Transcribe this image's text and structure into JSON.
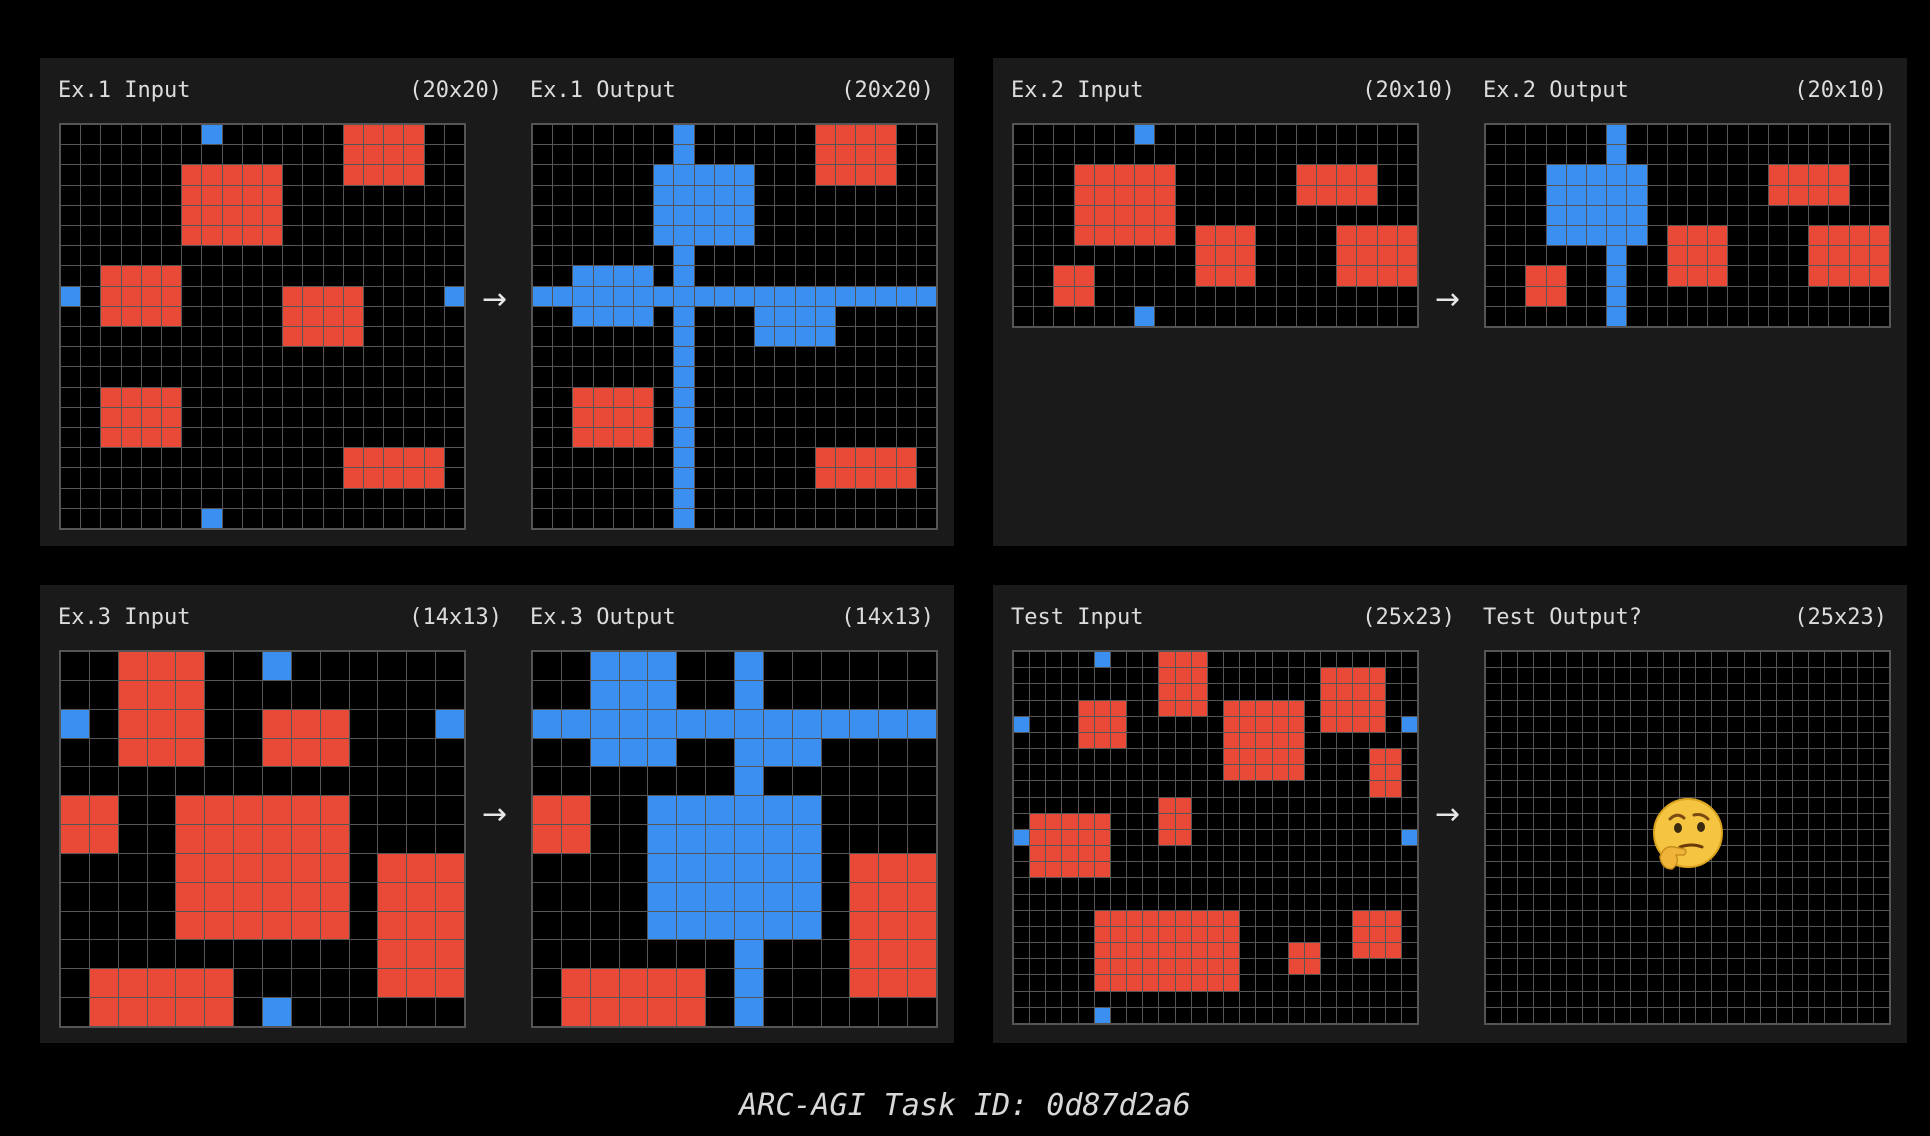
{
  "colors": {
    "0": "#000000",
    "1": "#3b8ff0",
    "2": "#e84a37"
  },
  "footer": "ARC-AGI Task ID: 0d87d2a6",
  "examples": [
    {
      "input": {
        "label": "Ex.1 Input",
        "dims": "(20x20)",
        "rows": 20,
        "cols": 20,
        "rects": [
          {
            "color": 2,
            "r": 0,
            "c": 14,
            "h": 3,
            "w": 4
          },
          {
            "color": 2,
            "r": 2,
            "c": 6,
            "h": 4,
            "w": 5
          },
          {
            "color": 2,
            "r": 7,
            "c": 2,
            "h": 3,
            "w": 4
          },
          {
            "color": 2,
            "r": 8,
            "c": 11,
            "h": 3,
            "w": 4
          },
          {
            "color": 2,
            "r": 13,
            "c": 2,
            "h": 3,
            "w": 4
          },
          {
            "color": 2,
            "r": 16,
            "c": 14,
            "h": 2,
            "w": 5
          },
          {
            "color": 1,
            "r": 0,
            "c": 7,
            "h": 1,
            "w": 1
          },
          {
            "color": 1,
            "r": 8,
            "c": 0,
            "h": 1,
            "w": 1
          },
          {
            "color": 1,
            "r": 8,
            "c": 19,
            "h": 1,
            "w": 1
          },
          {
            "color": 1,
            "r": 19,
            "c": 7,
            "h": 1,
            "w": 1
          }
        ]
      },
      "output": {
        "label": "Ex.1 Output",
        "dims": "(20x20)",
        "rows": 20,
        "cols": 20,
        "rects": [
          {
            "color": 2,
            "r": 0,
            "c": 14,
            "h": 3,
            "w": 4
          },
          {
            "color": 2,
            "r": 13,
            "c": 2,
            "h": 3,
            "w": 4
          },
          {
            "color": 2,
            "r": 16,
            "c": 14,
            "h": 2,
            "w": 5
          },
          {
            "color": 1,
            "r": 0,
            "c": 7,
            "h": 20,
            "w": 1
          },
          {
            "color": 1,
            "r": 8,
            "c": 0,
            "h": 1,
            "w": 20
          },
          {
            "color": 1,
            "r": 2,
            "c": 6,
            "h": 4,
            "w": 5
          },
          {
            "color": 1,
            "r": 7,
            "c": 2,
            "h": 3,
            "w": 4
          },
          {
            "color": 1,
            "r": 8,
            "c": 11,
            "h": 3,
            "w": 4
          }
        ]
      }
    },
    {
      "input": {
        "label": "Ex.2 Input",
        "dims": "(20x10)",
        "rows": 10,
        "cols": 20,
        "rects": [
          {
            "color": 2,
            "r": 2,
            "c": 3,
            "h": 4,
            "w": 5
          },
          {
            "color": 2,
            "r": 2,
            "c": 14,
            "h": 2,
            "w": 4
          },
          {
            "color": 2,
            "r": 5,
            "c": 9,
            "h": 3,
            "w": 3
          },
          {
            "color": 2,
            "r": 5,
            "c": 16,
            "h": 3,
            "w": 4
          },
          {
            "color": 2,
            "r": 7,
            "c": 2,
            "h": 2,
            "w": 2
          },
          {
            "color": 1,
            "r": 0,
            "c": 6,
            "h": 1,
            "w": 1
          },
          {
            "color": 1,
            "r": 9,
            "c": 6,
            "h": 1,
            "w": 1
          }
        ]
      },
      "output": {
        "label": "Ex.2 Output",
        "dims": "(20x10)",
        "rows": 10,
        "cols": 20,
        "rects": [
          {
            "color": 2,
            "r": 2,
            "c": 14,
            "h": 2,
            "w": 4
          },
          {
            "color": 2,
            "r": 5,
            "c": 9,
            "h": 3,
            "w": 3
          },
          {
            "color": 2,
            "r": 5,
            "c": 16,
            "h": 3,
            "w": 4
          },
          {
            "color": 2,
            "r": 7,
            "c": 2,
            "h": 2,
            "w": 2
          },
          {
            "color": 1,
            "r": 0,
            "c": 6,
            "h": 10,
            "w": 1
          },
          {
            "color": 1,
            "r": 2,
            "c": 3,
            "h": 4,
            "w": 5
          }
        ]
      }
    },
    {
      "input": {
        "label": "Ex.3 Input",
        "dims": "(14x13)",
        "rows": 13,
        "cols": 14,
        "rects": [
          {
            "color": 2,
            "r": 0,
            "c": 2,
            "h": 4,
            "w": 3
          },
          {
            "color": 2,
            "r": 2,
            "c": 7,
            "h": 2,
            "w": 3
          },
          {
            "color": 2,
            "r": 5,
            "c": 0,
            "h": 2,
            "w": 2
          },
          {
            "color": 2,
            "r": 5,
            "c": 4,
            "h": 5,
            "w": 6
          },
          {
            "color": 2,
            "r": 7,
            "c": 11,
            "h": 5,
            "w": 3
          },
          {
            "color": 2,
            "r": 11,
            "c": 1,
            "h": 2,
            "w": 5
          },
          {
            "color": 1,
            "r": 0,
            "c": 7,
            "h": 1,
            "w": 1
          },
          {
            "color": 1,
            "r": 2,
            "c": 0,
            "h": 1,
            "w": 1
          },
          {
            "color": 1,
            "r": 2,
            "c": 13,
            "h": 1,
            "w": 1
          },
          {
            "color": 1,
            "r": 12,
            "c": 7,
            "h": 1,
            "w": 1
          }
        ]
      },
      "output": {
        "label": "Ex.3 Output",
        "dims": "(14x13)",
        "rows": 13,
        "cols": 14,
        "rects": [
          {
            "color": 2,
            "r": 5,
            "c": 0,
            "h": 2,
            "w": 2
          },
          {
            "color": 2,
            "r": 7,
            "c": 11,
            "h": 5,
            "w": 3
          },
          {
            "color": 2,
            "r": 11,
            "c": 1,
            "h": 2,
            "w": 5
          },
          {
            "color": 1,
            "r": 0,
            "c": 7,
            "h": 13,
            "w": 1
          },
          {
            "color": 1,
            "r": 2,
            "c": 0,
            "h": 1,
            "w": 14
          },
          {
            "color": 1,
            "r": 0,
            "c": 2,
            "h": 4,
            "w": 3
          },
          {
            "color": 1,
            "r": 2,
            "c": 7,
            "h": 2,
            "w": 3
          },
          {
            "color": 1,
            "r": 5,
            "c": 4,
            "h": 5,
            "w": 6
          }
        ]
      }
    },
    {
      "input": {
        "label": "Test Input",
        "dims": "(25x23)",
        "rows": 23,
        "cols": 25,
        "rects": [
          {
            "color": 2,
            "r": 0,
            "c": 9,
            "h": 4,
            "w": 3
          },
          {
            "color": 2,
            "r": 1,
            "c": 19,
            "h": 4,
            "w": 4
          },
          {
            "color": 2,
            "r": 3,
            "c": 4,
            "h": 3,
            "w": 3
          },
          {
            "color": 2,
            "r": 3,
            "c": 13,
            "h": 5,
            "w": 5
          },
          {
            "color": 2,
            "r": 6,
            "c": 22,
            "h": 3,
            "w": 2
          },
          {
            "color": 2,
            "r": 9,
            "c": 9,
            "h": 3,
            "w": 2
          },
          {
            "color": 2,
            "r": 10,
            "c": 1,
            "h": 4,
            "w": 5
          },
          {
            "color": 2,
            "r": 16,
            "c": 5,
            "h": 5,
            "w": 9
          },
          {
            "color": 2,
            "r": 16,
            "c": 21,
            "h": 3,
            "w": 3
          },
          {
            "color": 2,
            "r": 18,
            "c": 17,
            "h": 2,
            "w": 2
          },
          {
            "color": 1,
            "r": 0,
            "c": 5,
            "h": 1,
            "w": 1
          },
          {
            "color": 1,
            "r": 4,
            "c": 0,
            "h": 1,
            "w": 1
          },
          {
            "color": 1,
            "r": 4,
            "c": 24,
            "h": 1,
            "w": 1
          },
          {
            "color": 1,
            "r": 11,
            "c": 0,
            "h": 1,
            "w": 1
          },
          {
            "color": 1,
            "r": 11,
            "c": 24,
            "h": 1,
            "w": 1
          },
          {
            "color": 1,
            "r": 22,
            "c": 5,
            "h": 1,
            "w": 1
          }
        ]
      },
      "output": {
        "label": "Test Output?",
        "dims": "(25x23)",
        "rows": 23,
        "cols": 25,
        "rects": [],
        "emoji": "🤔"
      }
    }
  ]
}
